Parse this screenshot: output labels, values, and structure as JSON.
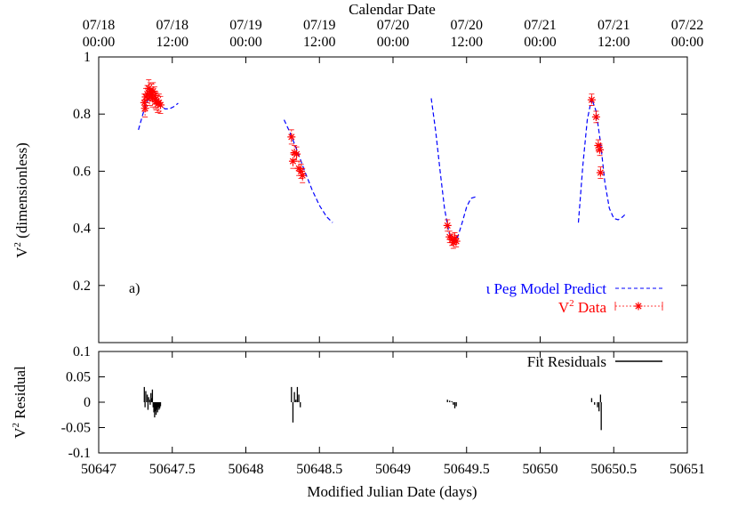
{
  "chart_data": [
    {
      "type": "line",
      "panel": "a)",
      "top_axis_label": "Calendar Date",
      "top_ticks": [
        {
          "date": "07/18",
          "time": "00:00",
          "mjd": 50647.0
        },
        {
          "date": "07/18",
          "time": "12:00",
          "mjd": 50647.5
        },
        {
          "date": "07/19",
          "time": "00:00",
          "mjd": 50648.0
        },
        {
          "date": "07/19",
          "time": "12:00",
          "mjd": 50648.5
        },
        {
          "date": "07/20",
          "time": "00:00",
          "mjd": 50649.0
        },
        {
          "date": "07/20",
          "time": "12:00",
          "mjd": 50649.5
        },
        {
          "date": "07/21",
          "time": "00:00",
          "mjd": 50650.0
        },
        {
          "date": "07/21",
          "time": "12:00",
          "mjd": 50650.5
        },
        {
          "date": "07/22",
          "time": "00:00",
          "mjd": 50651.0
        }
      ],
      "ylabel": "V",
      "ylabel_sup": "2",
      "ylabel_rest": " (dimensionless)",
      "xlim": [
        50647,
        50651
      ],
      "ylim": [
        0,
        1
      ],
      "yticks": [
        "0.2",
        "0.4",
        "0.6",
        "0.8",
        "1"
      ],
      "ytick_values": [
        0.2,
        0.4,
        0.6,
        0.8,
        1.0
      ],
      "legend_position": "bottom-right",
      "series": [
        {
          "name": "ι Peg Model Predict",
          "color": "#0000ff",
          "style": "dashed",
          "segments": [
            {
              "x": [
                50647.27,
                50647.3,
                50647.33,
                50647.36,
                50647.39,
                50647.42,
                50647.45,
                50647.48,
                50647.51,
                50647.54
              ],
              "y": [
                0.745,
                0.8,
                0.845,
                0.87,
                0.855,
                0.83,
                0.818,
                0.818,
                0.826,
                0.838
              ]
            },
            {
              "x": [
                50648.26,
                50648.3,
                50648.35,
                50648.4,
                50648.45,
                50648.5,
                50648.55,
                50648.59
              ],
              "y": [
                0.78,
                0.735,
                0.67,
                0.6,
                0.535,
                0.48,
                0.44,
                0.42
              ]
            },
            {
              "x": [
                50649.26,
                50649.29,
                50649.32,
                50649.35,
                50649.38,
                50649.41,
                50649.44,
                50649.47,
                50649.5,
                50649.53,
                50649.56
              ],
              "y": [
                0.855,
                0.74,
                0.6,
                0.47,
                0.385,
                0.355,
                0.37,
                0.42,
                0.475,
                0.505,
                0.51
              ]
            },
            {
              "x": [
                50650.26,
                50650.29,
                50650.32,
                50650.35,
                50650.38,
                50650.41,
                50650.44,
                50650.47,
                50650.5,
                50650.53,
                50650.56,
                50650.58
              ],
              "y": [
                0.42,
                0.62,
                0.78,
                0.855,
                0.81,
                0.7,
                0.56,
                0.47,
                0.435,
                0.43,
                0.44,
                0.45
              ]
            }
          ]
        },
        {
          "name": "V2 Data",
          "name_text": "V",
          "name_sup": "2",
          "name_rest": " Data",
          "color": "#ff0000",
          "style": "points-errorbars",
          "points": [
            [
              50647.31,
              0.84,
              0.03
            ],
            [
              50647.32,
              0.86,
              0.03
            ],
            [
              50647.33,
              0.87,
              0.03
            ],
            [
              50647.34,
              0.89,
              0.03
            ],
            [
              50647.35,
              0.88,
              0.03
            ],
            [
              50647.36,
              0.875,
              0.03
            ],
            [
              50647.365,
              0.855,
              0.03
            ],
            [
              50647.37,
              0.88,
              0.03
            ],
            [
              50647.38,
              0.865,
              0.03
            ],
            [
              50647.39,
              0.845,
              0.03
            ],
            [
              50647.4,
              0.835,
              0.03
            ],
            [
              50647.41,
              0.84,
              0.03
            ],
            [
              50647.42,
              0.832,
              0.03
            ],
            [
              50647.315,
              0.82,
              0.03
            ],
            [
              50647.345,
              0.86,
              0.03
            ],
            [
              50647.385,
              0.85,
              0.03
            ],
            [
              50648.31,
              0.72,
              0.025
            ],
            [
              50648.33,
              0.665,
              0.025
            ],
            [
              50648.345,
              0.66,
              0.025
            ],
            [
              50648.32,
              0.635,
              0.025
            ],
            [
              50648.36,
              0.61,
              0.025
            ],
            [
              50648.375,
              0.6,
              0.025
            ],
            [
              50648.385,
              0.585,
              0.025
            ],
            [
              50649.37,
              0.41,
              0.02
            ],
            [
              50649.385,
              0.37,
              0.02
            ],
            [
              50649.4,
              0.36,
              0.02
            ],
            [
              50649.41,
              0.35,
              0.02
            ],
            [
              50649.42,
              0.365,
              0.02
            ],
            [
              50649.43,
              0.355,
              0.02
            ],
            [
              50650.35,
              0.85,
              0.02
            ],
            [
              50650.38,
              0.79,
              0.02
            ],
            [
              50650.395,
              0.69,
              0.02
            ],
            [
              50650.405,
              0.675,
              0.02
            ],
            [
              50650.41,
              0.595,
              0.02
            ]
          ]
        }
      ]
    },
    {
      "type": "bar",
      "ylabel": "V",
      "ylabel_sup": "2",
      "ylabel_rest": " Residual",
      "xlabel": "Modified Julian Date (days)",
      "xlim": [
        50647,
        50651
      ],
      "ylim": [
        -0.1,
        0.1
      ],
      "xticks": [
        "50647",
        "50647.5",
        "50648",
        "50648.5",
        "50649",
        "50649.5",
        "50650",
        "50650.5",
        "50651"
      ],
      "xtick_values": [
        50647,
        50647.5,
        50648,
        50648.5,
        50649,
        50649.5,
        50650,
        50650.5,
        50651
      ],
      "yticks": [
        "-0.1",
        "-0.05",
        "0",
        "0.05",
        "0.1"
      ],
      "ytick_values": [
        -0.1,
        -0.05,
        0,
        0.05,
        0.1
      ],
      "legend_position": "top-right",
      "series": [
        {
          "name": "Fit Residuals",
          "color": "#000000",
          "bars": [
            [
              50647.31,
              0.03
            ],
            [
              50647.315,
              -0.01
            ],
            [
              50647.32,
              0.022
            ],
            [
              50647.33,
              0.015
            ],
            [
              50647.335,
              -0.015
            ],
            [
              50647.34,
              0.01
            ],
            [
              50647.345,
              0.005
            ],
            [
              50647.35,
              -0.005
            ],
            [
              50647.355,
              0.018
            ],
            [
              50647.36,
              0.008
            ],
            [
              50647.365,
              0.025
            ],
            [
              50647.37,
              -0.01
            ],
            [
              50647.375,
              -0.02
            ],
            [
              50647.38,
              -0.03
            ],
            [
              50647.385,
              -0.018
            ],
            [
              50647.39,
              -0.025
            ],
            [
              50647.395,
              -0.015
            ],
            [
              50647.4,
              -0.02
            ],
            [
              50647.405,
              -0.01
            ],
            [
              50647.41,
              -0.015
            ],
            [
              50647.415,
              -0.012
            ],
            [
              50647.42,
              -0.008
            ],
            [
              50648.31,
              0.03
            ],
            [
              50648.32,
              -0.04
            ],
            [
              50648.33,
              0.02
            ],
            [
              50648.34,
              0.005
            ],
            [
              50648.35,
              0.03
            ],
            [
              50648.36,
              0.015
            ],
            [
              50648.37,
              -0.01
            ],
            [
              50649.37,
              0.005
            ],
            [
              50649.385,
              0.003
            ],
            [
              50649.4,
              0.002
            ],
            [
              50649.41,
              -0.005
            ],
            [
              50649.42,
              -0.012
            ],
            [
              50649.43,
              -0.008
            ],
            [
              50650.35,
              0.008
            ],
            [
              50650.37,
              -0.005
            ],
            [
              50650.39,
              -0.01
            ],
            [
              50650.4,
              -0.018
            ],
            [
              50650.41,
              0.015
            ],
            [
              50650.415,
              -0.055
            ]
          ]
        }
      ]
    }
  ]
}
